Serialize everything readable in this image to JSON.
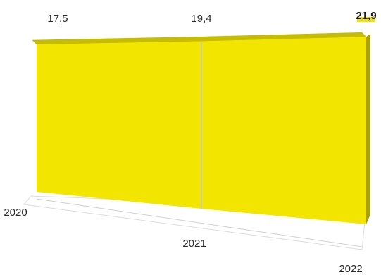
{
  "chart_data": {
    "type": "area",
    "subtype": "3d-area",
    "categories": [
      "2020",
      "2021",
      "2022"
    ],
    "series": [
      {
        "values": [
          17.5,
          19.4,
          21.9
        ],
        "color": "#f2e600"
      }
    ],
    "data_labels": [
      "17,5",
      "19,4",
      "21,9"
    ],
    "highlight_color": "#f2e600",
    "legend": "none",
    "grid": false
  }
}
